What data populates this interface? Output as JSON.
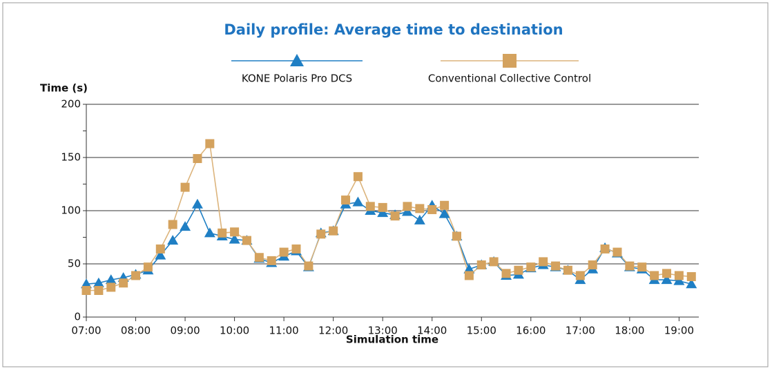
{
  "chart_data": {
    "type": "line",
    "title": "Daily profile: Average time to destination",
    "y_label": "Time (s)",
    "x_label": "Simulation time",
    "x": [
      7,
      7.25,
      7.5,
      7.75,
      8,
      8.25,
      8.5,
      8.75,
      9,
      9.25,
      9.5,
      9.75,
      10,
      10.25,
      10.5,
      10.75,
      11,
      11.25,
      11.5,
      11.75,
      12,
      12.25,
      12.5,
      12.75,
      13,
      13.25,
      13.5,
      13.75,
      14,
      14.25,
      14.5,
      14.75,
      15,
      15.25,
      15.5,
      15.75,
      16,
      16.25,
      16.5,
      16.75,
      17,
      17.25,
      17.5,
      17.75,
      18,
      18.25,
      18.5,
      18.75,
      19,
      19.25
    ],
    "series": [
      {
        "name": "KONE Polaris Pro DCS",
        "color": "#1f7fc4",
        "marker": "triangle",
        "values": [
          31,
          32,
          35,
          37,
          40,
          44,
          58,
          72,
          85,
          106,
          79,
          76,
          73,
          72,
          55,
          51,
          57,
          62,
          47,
          79,
          81,
          106,
          108,
          100,
          98,
          96,
          99,
          91,
          105,
          97,
          76,
          45,
          49,
          52,
          39,
          40,
          46,
          49,
          47,
          44,
          35,
          45,
          65,
          60,
          47,
          45,
          35,
          35,
          34,
          31
        ]
      },
      {
        "name": "Conventional Collective Control",
        "color": "#d4a25e",
        "marker": "square",
        "values": [
          25,
          25,
          28,
          32,
          39,
          47,
          64,
          87,
          122,
          149,
          163,
          79,
          80,
          72,
          56,
          53,
          61,
          64,
          48,
          78,
          81,
          110,
          132,
          104,
          103,
          95,
          104,
          102,
          101,
          105,
          76,
          39,
          49,
          52,
          41,
          44,
          47,
          52,
          48,
          44,
          39,
          49,
          64,
          61,
          48,
          47,
          39,
          41,
          39,
          38
        ]
      }
    ],
    "xlim": [
      7,
      19.4
    ],
    "xticks": [
      {
        "value": 7,
        "label": "07:00"
      },
      {
        "value": 8,
        "label": "08:00"
      },
      {
        "value": 9,
        "label": "09:00"
      },
      {
        "value": 10,
        "label": "10:00"
      },
      {
        "value": 11,
        "label": "11:00"
      },
      {
        "value": 12,
        "label": "12:00"
      },
      {
        "value": 13,
        "label": "13:00"
      },
      {
        "value": 14,
        "label": "14:00"
      },
      {
        "value": 15,
        "label": "15:00"
      },
      {
        "value": 16,
        "label": "16:00"
      },
      {
        "value": 17,
        "label": "17:00"
      },
      {
        "value": 18,
        "label": "18:00"
      },
      {
        "value": 19,
        "label": "19:00"
      }
    ],
    "ylim": [
      0,
      200
    ],
    "yticks": [
      0,
      50,
      100,
      150,
      200
    ],
    "yminor_ticks": [
      25,
      75,
      125,
      175
    ],
    "grid": true
  }
}
